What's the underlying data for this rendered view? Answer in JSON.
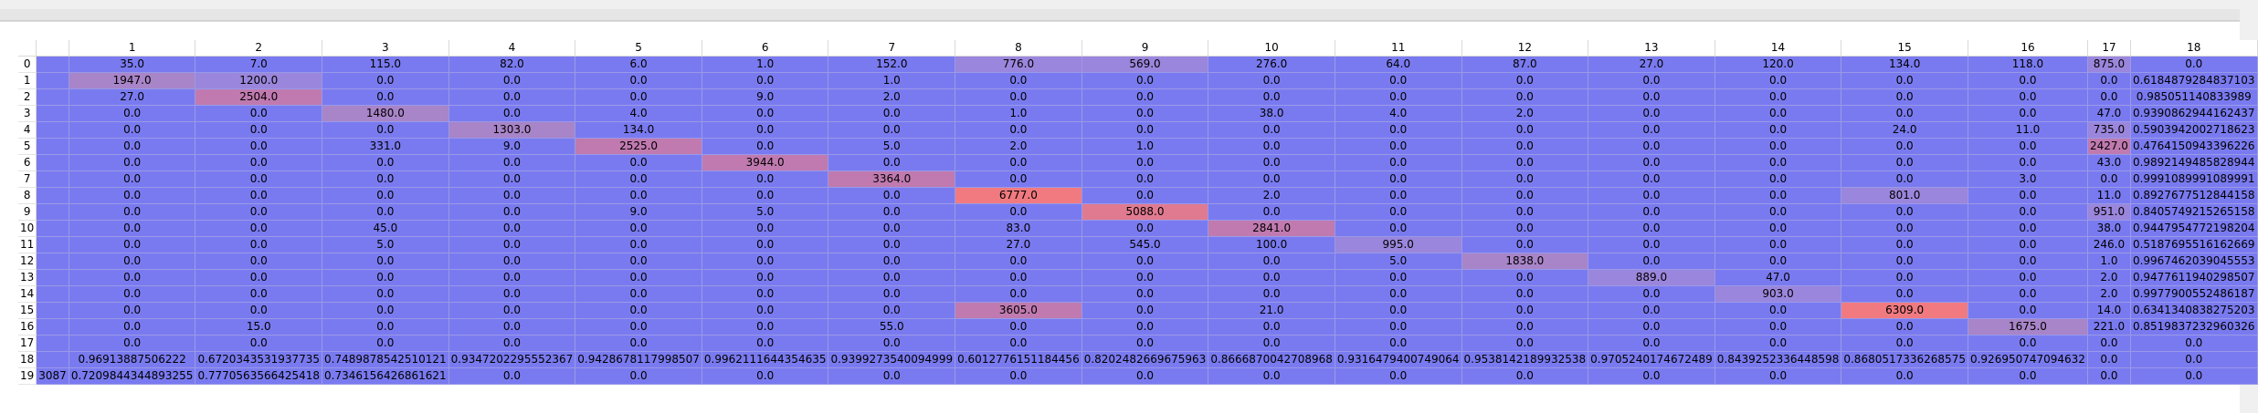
{
  "colors": {
    "base": "#7a7af0",
    "levels": [
      "#7a7af0",
      "#9a86dc",
      "#a884c8",
      "#c07ab0",
      "#e07a90",
      "#f07a80"
    ]
  },
  "columns": [
    "",
    "1",
    "2",
    "3",
    "4",
    "5",
    "6",
    "7",
    "8",
    "9",
    "10",
    "11",
    "12",
    "13",
    "14",
    "15",
    "16",
    "17",
    "18"
  ],
  "rows": [
    {
      "label": "0",
      "cells": [
        "",
        "35.0",
        "7.0",
        "115.0",
        "82.0",
        "6.0",
        "1.0",
        "152.0",
        "776.0",
        "569.0",
        "276.0",
        "64.0",
        "87.0",
        "27.0",
        "120.0",
        "134.0",
        "118.0",
        "875.0",
        "0.0"
      ],
      "levels": [
        0,
        0,
        0,
        0,
        0,
        0,
        0,
        0,
        1,
        1,
        0,
        0,
        0,
        0,
        0,
        0,
        0,
        1,
        0
      ]
    },
    {
      "label": "1",
      "cells": [
        "",
        "1947.0",
        "1200.0",
        "0.0",
        "0.0",
        "0.0",
        "0.0",
        "1.0",
        "0.0",
        "0.0",
        "0.0",
        "0.0",
        "0.0",
        "0.0",
        "0.0",
        "0.0",
        "0.0",
        "0.0",
        "0.6184879284837103"
      ],
      "levels": [
        0,
        2,
        1,
        0,
        0,
        0,
        0,
        0,
        0,
        0,
        0,
        0,
        0,
        0,
        0,
        0,
        0,
        0,
        0
      ]
    },
    {
      "label": "2",
      "cells": [
        "",
        "27.0",
        "2504.0",
        "0.0",
        "0.0",
        "0.0",
        "9.0",
        "2.0",
        "0.0",
        "0.0",
        "0.0",
        "0.0",
        "0.0",
        "0.0",
        "0.0",
        "0.0",
        "0.0",
        "0.0",
        "0.985051140833989"
      ],
      "levels": [
        0,
        0,
        3,
        0,
        0,
        0,
        0,
        0,
        0,
        0,
        0,
        0,
        0,
        0,
        0,
        0,
        0,
        0,
        0
      ]
    },
    {
      "label": "3",
      "cells": [
        "",
        "0.0",
        "0.0",
        "1480.0",
        "0.0",
        "4.0",
        "0.0",
        "0.0",
        "1.0",
        "0.0",
        "38.0",
        "4.0",
        "2.0",
        "0.0",
        "0.0",
        "0.0",
        "0.0",
        "47.0",
        "0.9390862944162437"
      ],
      "levels": [
        0,
        0,
        0,
        2,
        0,
        0,
        0,
        0,
        0,
        0,
        0,
        0,
        0,
        0,
        0,
        0,
        0,
        0,
        0
      ]
    },
    {
      "label": "4",
      "cells": [
        "",
        "0.0",
        "0.0",
        "0.0",
        "1303.0",
        "134.0",
        "0.0",
        "0.0",
        "0.0",
        "0.0",
        "0.0",
        "0.0",
        "0.0",
        "0.0",
        "0.0",
        "24.0",
        "11.0",
        "735.0",
        "0.5903942002718623"
      ],
      "levels": [
        0,
        0,
        0,
        0,
        2,
        0,
        0,
        0,
        0,
        0,
        0,
        0,
        0,
        0,
        0,
        0,
        0,
        1,
        0
      ]
    },
    {
      "label": "5",
      "cells": [
        "",
        "0.0",
        "0.0",
        "331.0",
        "9.0",
        "2525.0",
        "0.0",
        "5.0",
        "2.0",
        "1.0",
        "0.0",
        "0.0",
        "0.0",
        "0.0",
        "0.0",
        "0.0",
        "0.0",
        "2427.0",
        "0.4764150943396226"
      ],
      "levels": [
        0,
        0,
        0,
        0,
        0,
        3,
        0,
        0,
        0,
        0,
        0,
        0,
        0,
        0,
        0,
        0,
        0,
        3,
        0
      ]
    },
    {
      "label": "6",
      "cells": [
        "",
        "0.0",
        "0.0",
        "0.0",
        "0.0",
        "0.0",
        "3944.0",
        "0.0",
        "0.0",
        "0.0",
        "0.0",
        "0.0",
        "0.0",
        "0.0",
        "0.0",
        "0.0",
        "0.0",
        "43.0",
        "0.9892149485828944"
      ],
      "levels": [
        0,
        0,
        0,
        0,
        0,
        0,
        3,
        0,
        0,
        0,
        0,
        0,
        0,
        0,
        0,
        0,
        0,
        0,
        0
      ]
    },
    {
      "label": "7",
      "cells": [
        "",
        "0.0",
        "0.0",
        "0.0",
        "0.0",
        "0.0",
        "0.0",
        "3364.0",
        "0.0",
        "0.0",
        "0.0",
        "0.0",
        "0.0",
        "0.0",
        "0.0",
        "0.0",
        "3.0",
        "0.0",
        "0.9991089991089991"
      ],
      "levels": [
        0,
        0,
        0,
        0,
        0,
        0,
        0,
        3,
        0,
        0,
        0,
        0,
        0,
        0,
        0,
        0,
        0,
        0,
        0
      ]
    },
    {
      "label": "8",
      "cells": [
        "",
        "0.0",
        "0.0",
        "0.0",
        "0.0",
        "0.0",
        "0.0",
        "0.0",
        "6777.0",
        "0.0",
        "2.0",
        "0.0",
        "0.0",
        "0.0",
        "0.0",
        "801.0",
        "0.0",
        "11.0",
        "0.8927677512844158"
      ],
      "levels": [
        0,
        0,
        0,
        0,
        0,
        0,
        0,
        0,
        5,
        0,
        0,
        0,
        0,
        0,
        0,
        1,
        0,
        0,
        0
      ]
    },
    {
      "label": "9",
      "cells": [
        "",
        "0.0",
        "0.0",
        "0.0",
        "0.0",
        "9.0",
        "5.0",
        "0.0",
        "0.0",
        "5088.0",
        "0.0",
        "0.0",
        "0.0",
        "0.0",
        "0.0",
        "0.0",
        "0.0",
        "951.0",
        "0.8405749215265158"
      ],
      "levels": [
        0,
        0,
        0,
        0,
        0,
        0,
        0,
        0,
        0,
        4,
        0,
        0,
        0,
        0,
        0,
        0,
        0,
        1,
        0
      ]
    },
    {
      "label": "10",
      "cells": [
        "",
        "0.0",
        "0.0",
        "45.0",
        "0.0",
        "0.0",
        "0.0",
        "0.0",
        "83.0",
        "0.0",
        "2841.0",
        "0.0",
        "0.0",
        "0.0",
        "0.0",
        "0.0",
        "0.0",
        "38.0",
        "0.9447954772198204"
      ],
      "levels": [
        0,
        0,
        0,
        0,
        0,
        0,
        0,
        0,
        0,
        0,
        3,
        0,
        0,
        0,
        0,
        0,
        0,
        0,
        0
      ]
    },
    {
      "label": "11",
      "cells": [
        "",
        "0.0",
        "0.0",
        "5.0",
        "0.0",
        "0.0",
        "0.0",
        "0.0",
        "27.0",
        "545.0",
        "100.0",
        "995.0",
        "0.0",
        "0.0",
        "0.0",
        "0.0",
        "0.0",
        "246.0",
        "0.5187695516162669"
      ],
      "levels": [
        0,
        0,
        0,
        0,
        0,
        0,
        0,
        0,
        0,
        0,
        0,
        1,
        0,
        0,
        0,
        0,
        0,
        0,
        0
      ]
    },
    {
      "label": "12",
      "cells": [
        "",
        "0.0",
        "0.0",
        "0.0",
        "0.0",
        "0.0",
        "0.0",
        "0.0",
        "0.0",
        "0.0",
        "0.0",
        "5.0",
        "1838.0",
        "0.0",
        "0.0",
        "0.0",
        "0.0",
        "1.0",
        "0.9967462039045553"
      ],
      "levels": [
        0,
        0,
        0,
        0,
        0,
        0,
        0,
        0,
        0,
        0,
        0,
        0,
        2,
        0,
        0,
        0,
        0,
        0,
        0
      ]
    },
    {
      "label": "13",
      "cells": [
        "",
        "0.0",
        "0.0",
        "0.0",
        "0.0",
        "0.0",
        "0.0",
        "0.0",
        "0.0",
        "0.0",
        "0.0",
        "0.0",
        "0.0",
        "889.0",
        "47.0",
        "0.0",
        "0.0",
        "2.0",
        "0.9477611940298507"
      ],
      "levels": [
        0,
        0,
        0,
        0,
        0,
        0,
        0,
        0,
        0,
        0,
        0,
        0,
        0,
        1,
        0,
        0,
        0,
        0,
        0
      ]
    },
    {
      "label": "14",
      "cells": [
        "",
        "0.0",
        "0.0",
        "0.0",
        "0.0",
        "0.0",
        "0.0",
        "0.0",
        "0.0",
        "0.0",
        "0.0",
        "0.0",
        "0.0",
        "0.0",
        "903.0",
        "0.0",
        "0.0",
        "2.0",
        "0.9977900552486187"
      ],
      "levels": [
        0,
        0,
        0,
        0,
        0,
        0,
        0,
        0,
        0,
        0,
        0,
        0,
        0,
        0,
        1,
        0,
        0,
        0,
        0
      ]
    },
    {
      "label": "15",
      "cells": [
        "",
        "0.0",
        "0.0",
        "0.0",
        "0.0",
        "0.0",
        "0.0",
        "0.0",
        "3605.0",
        "0.0",
        "21.0",
        "0.0",
        "0.0",
        "0.0",
        "0.0",
        "6309.0",
        "0.0",
        "14.0",
        "0.6341340838275203"
      ],
      "levels": [
        0,
        0,
        0,
        0,
        0,
        0,
        0,
        0,
        3,
        0,
        0,
        0,
        0,
        0,
        0,
        5,
        0,
        0,
        0
      ]
    },
    {
      "label": "16",
      "cells": [
        "",
        "0.0",
        "15.0",
        "0.0",
        "0.0",
        "0.0",
        "0.0",
        "55.0",
        "0.0",
        "0.0",
        "0.0",
        "0.0",
        "0.0",
        "0.0",
        "0.0",
        "0.0",
        "1675.0",
        "221.0",
        "0.8519837232960326"
      ],
      "levels": [
        0,
        0,
        0,
        0,
        0,
        0,
        0,
        0,
        0,
        0,
        0,
        0,
        0,
        0,
        0,
        0,
        2,
        0,
        0
      ]
    },
    {
      "label": "17",
      "cells": [
        "",
        "0.0",
        "0.0",
        "0.0",
        "0.0",
        "0.0",
        "0.0",
        "0.0",
        "0.0",
        "0.0",
        "0.0",
        "0.0",
        "0.0",
        "0.0",
        "0.0",
        "0.0",
        "0.0",
        "0.0",
        "0.0"
      ],
      "levels": [
        0,
        0,
        0,
        0,
        0,
        0,
        0,
        0,
        0,
        0,
        0,
        0,
        0,
        0,
        0,
        0,
        0,
        0,
        0
      ]
    },
    {
      "label": "18",
      "cells": [
        "",
        "0.96913887506222",
        "0.6720343531937735",
        "0.7489878542510121",
        "0.9347202295552367",
        "0.9428678117998507",
        "0.9962111644354635",
        "0.9399273540094999",
        "0.6012776151184456",
        "0.8202482669675963",
        "0.8666870042708968",
        "0.9316479400749064",
        "0.9538142189932538",
        "0.9705240174672489",
        "0.8439252336448598",
        "0.8680517336268575",
        "0.926950747094632",
        "0.0",
        "0.0"
      ],
      "levels": [
        0,
        0,
        0,
        0,
        0,
        0,
        0,
        0,
        0,
        0,
        0,
        0,
        0,
        0,
        0,
        0,
        0,
        0,
        0
      ]
    },
    {
      "label": "19",
      "cells": [
        "3087",
        "0.7209844344893255",
        "0.7770563566425418",
        "0.7346156426861621",
        "0.0",
        "0.0",
        "0.0",
        "0.0",
        "0.0",
        "0.0",
        "0.0",
        "0.0",
        "0.0",
        "0.0",
        "0.0",
        "0.0",
        "0.0",
        "0.0",
        "0.0"
      ],
      "levels": [
        0,
        0,
        0,
        0,
        0,
        0,
        0,
        0,
        0,
        0,
        0,
        0,
        0,
        0,
        0,
        0,
        0,
        0,
        0
      ]
    }
  ]
}
